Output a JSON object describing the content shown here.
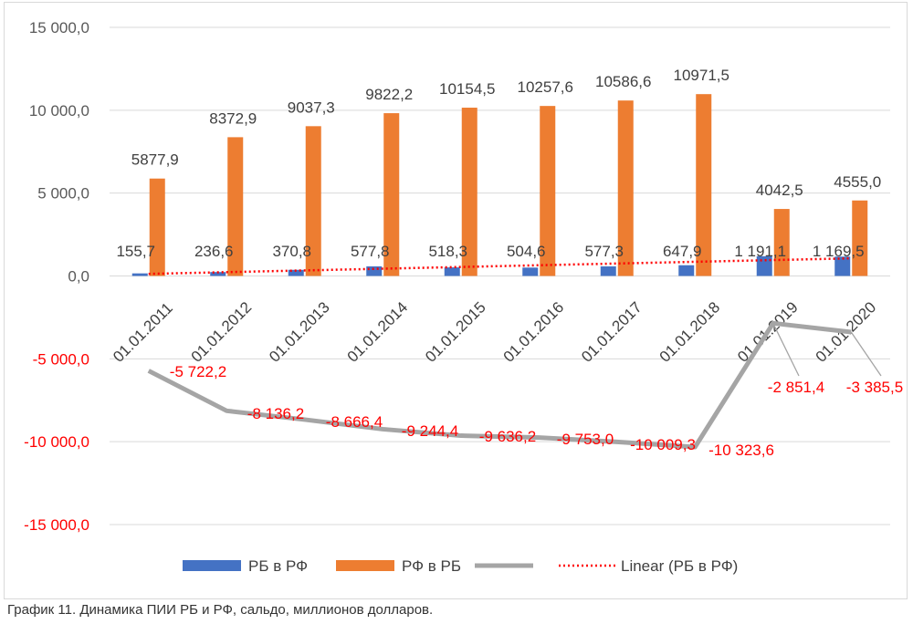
{
  "caption": "График 11. Динамика ПИИ РБ и РФ, сальдо, миллионов долларов.",
  "chart_data": {
    "type": "bar",
    "categories": [
      "01.01.2011",
      "01.01.2012",
      "01.01.2013",
      "01.01.2014",
      "01.01.2015",
      "01.01.2016",
      "01.01.2017",
      "01.01.2018",
      "01.01.2019",
      "01.01.2020"
    ],
    "ylim": [
      -15000,
      15000
    ],
    "yticks": [
      15000,
      10000,
      5000,
      0,
      -5000,
      -10000,
      -15000
    ],
    "ytick_labels": [
      "15 000,0",
      "10 000,0",
      "5 000,0",
      "0,0",
      "-5 000,0",
      "-10 000,0",
      "-15 000,0"
    ],
    "grid": true,
    "legend_position": "bottom",
    "series": [
      {
        "name": "РБ в РФ",
        "type": "bar",
        "color": "#4472c4",
        "values": [
          155.7,
          236.6,
          370.8,
          577.8,
          518.3,
          504.6,
          577.3,
          647.9,
          1191.1,
          1169.5
        ],
        "labels": [
          "155,7",
          "236,6",
          "370,8",
          "577,8",
          "518,3",
          "504,6",
          "577,3",
          "647,9",
          "1 191,1",
          "1 169,5"
        ]
      },
      {
        "name": "РФ в РБ",
        "type": "bar",
        "color": "#ed7d31",
        "values": [
          5877.9,
          8372.9,
          9037.3,
          9822.2,
          10154.5,
          10257.6,
          10586.6,
          10971.5,
          4042.5,
          4555.0
        ],
        "labels": [
          "5877,9",
          "8372,9",
          "9037,3",
          "9822,2",
          "10154,5",
          "10257,6",
          "10586,6",
          "10971,5",
          "4042,5",
          "4555,0"
        ]
      },
      {
        "name": "",
        "type": "line",
        "color": "#a5a5a5",
        "values": [
          -5722.2,
          -8136.2,
          -8666.4,
          -9244.4,
          -9636.2,
          -9753.0,
          -10009.3,
          -10323.6,
          -2851.4,
          -3385.5
        ],
        "labels": [
          "-5 722,2",
          "-8 136,2",
          "-8 666,4",
          "-9 244,4",
          "-9 636,2",
          "-9 753,0",
          "-10 009,3",
          "-10 323,6",
          "-2 851,4",
          "-3 385,5"
        ]
      },
      {
        "name": "Linear (РБ в РФ)",
        "type": "trendline",
        "color": "#ff0000"
      }
    ],
    "colors": {
      "grid": "#d9d9d9",
      "tick_text": "#595959",
      "negative_tick_text": "#ff0000",
      "negative_label": "#ff0000",
      "label": "#404040"
    }
  }
}
